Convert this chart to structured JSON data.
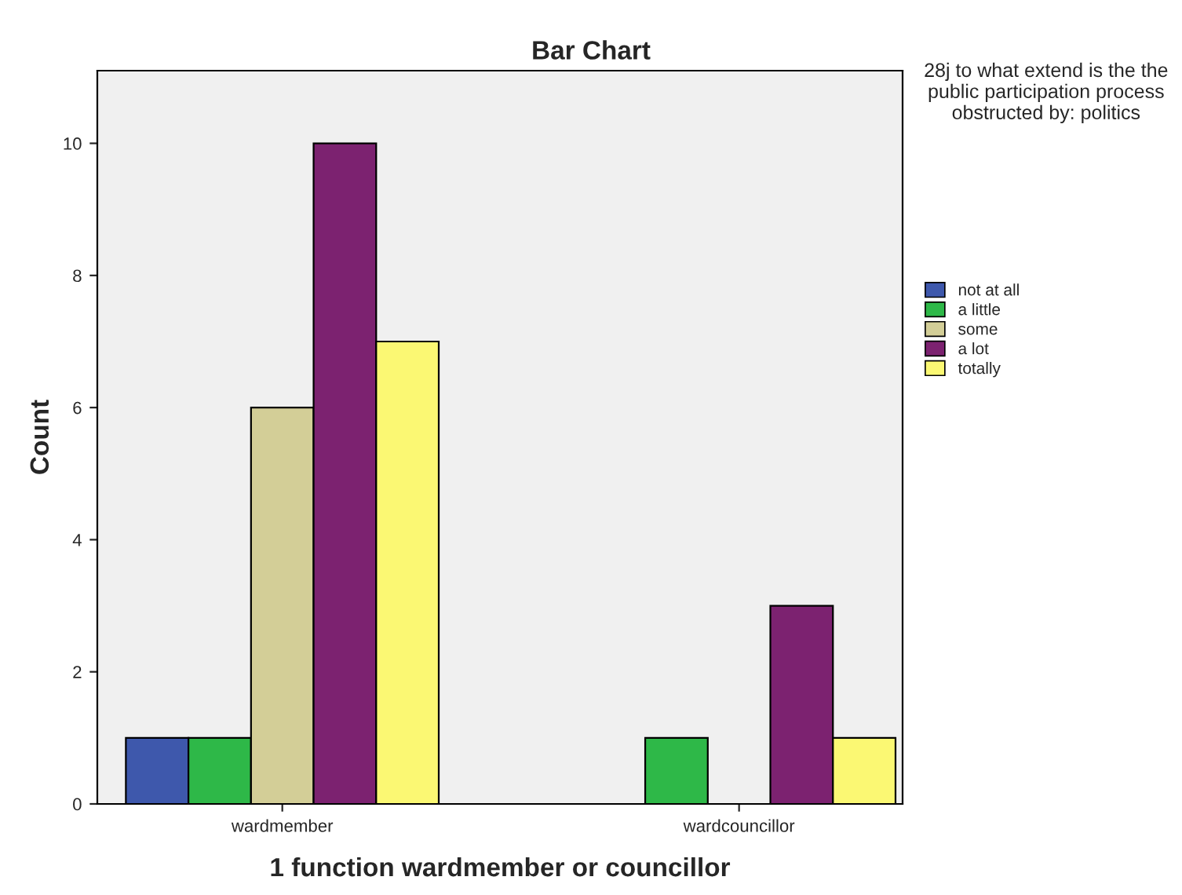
{
  "chart_data": {
    "type": "bar",
    "title": "Bar Chart",
    "xlabel": "1 function wardmember or councillor",
    "ylabel": "Count",
    "legend_title": "28j to what extend is the the public participation process obstructed by: politics",
    "categories": [
      "wardmember",
      "wardcouncillor"
    ],
    "series": [
      {
        "name": "not at all",
        "color": "#3e58ac",
        "values": [
          1,
          null
        ]
      },
      {
        "name": "a little",
        "color": "#2eb848",
        "values": [
          1,
          1
        ]
      },
      {
        "name": "some",
        "color": "#d3ce97",
        "values": [
          6,
          null
        ]
      },
      {
        "name": "a lot",
        "color": "#7c2270",
        "values": [
          10,
          3
        ]
      },
      {
        "name": "totally",
        "color": "#fbf873",
        "values": [
          7,
          1
        ]
      }
    ],
    "ylim": [
      0,
      11.1
    ],
    "yticks": [
      0,
      2,
      4,
      6,
      8,
      10
    ],
    "grid": false,
    "legend": "right"
  }
}
